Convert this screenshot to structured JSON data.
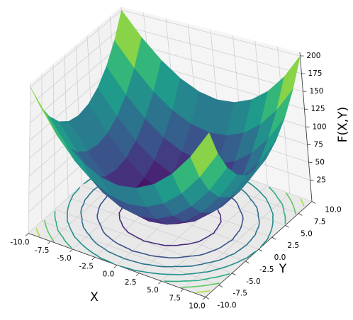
{
  "chart_data": {
    "type": "surface3d",
    "xlabel": "X",
    "ylabel": "Y",
    "zlabel": "F(X,Y)",
    "x": [
      -10,
      -8,
      -6,
      -4,
      -2,
      0,
      2,
      4,
      6,
      8,
      10
    ],
    "y": [
      -10,
      -8,
      -6,
      -4,
      -2,
      0,
      2,
      4,
      6,
      8,
      10
    ],
    "z": [
      [
        200,
        164,
        136,
        116,
        104,
        100,
        104,
        116,
        136,
        164,
        200
      ],
      [
        164,
        128,
        100,
        80,
        68,
        64,
        68,
        80,
        100,
        128,
        164
      ],
      [
        136,
        100,
        72,
        52,
        40,
        36,
        40,
        52,
        72,
        100,
        136
      ],
      [
        116,
        80,
        52,
        32,
        20,
        16,
        20,
        32,
        52,
        80,
        116
      ],
      [
        104,
        68,
        40,
        20,
        8,
        4,
        8,
        20,
        40,
        68,
        104
      ],
      [
        100,
        64,
        36,
        16,
        4,
        0,
        4,
        16,
        36,
        64,
        100
      ],
      [
        104,
        68,
        40,
        20,
        8,
        4,
        8,
        20,
        40,
        68,
        104
      ],
      [
        116,
        80,
        52,
        32,
        20,
        16,
        20,
        32,
        52,
        80,
        116
      ],
      [
        136,
        100,
        72,
        52,
        40,
        36,
        40,
        52,
        72,
        100,
        136
      ],
      [
        164,
        128,
        100,
        80,
        68,
        64,
        68,
        80,
        100,
        128,
        164
      ],
      [
        200,
        164,
        136,
        116,
        104,
        100,
        104,
        116,
        136,
        164,
        200
      ]
    ],
    "colormap": "viridis",
    "contour_levels": [
      25,
      50,
      75,
      100,
      125,
      150,
      175
    ],
    "xlim": [
      -10,
      10
    ],
    "ylim": [
      -10,
      10
    ],
    "zlim": [
      -5,
      205
    ],
    "xticks": [
      {
        "value": -10,
        "label": "-10.0"
      },
      -7.5,
      {
        "value": -5,
        "label": "-5.0"
      },
      -2.5,
      {
        "value": 0,
        "label": "0.0"
      },
      2.5,
      {
        "value": 5,
        "label": "5.0"
      },
      7.5,
      {
        "value": 10,
        "label": "10.0"
      }
    ],
    "yticks": [
      {
        "value": -10,
        "label": "-10.0"
      },
      -7.5,
      {
        "value": -5,
        "label": "-5.0"
      },
      -2.5,
      {
        "value": 0,
        "label": "0.0"
      },
      2.5,
      {
        "value": 5,
        "label": "5.0"
      },
      7.5,
      {
        "value": 10,
        "label": "10.0"
      }
    ],
    "zticks": [
      25,
      50,
      75,
      100,
      125,
      150,
      175,
      200
    ],
    "grid": true
  }
}
